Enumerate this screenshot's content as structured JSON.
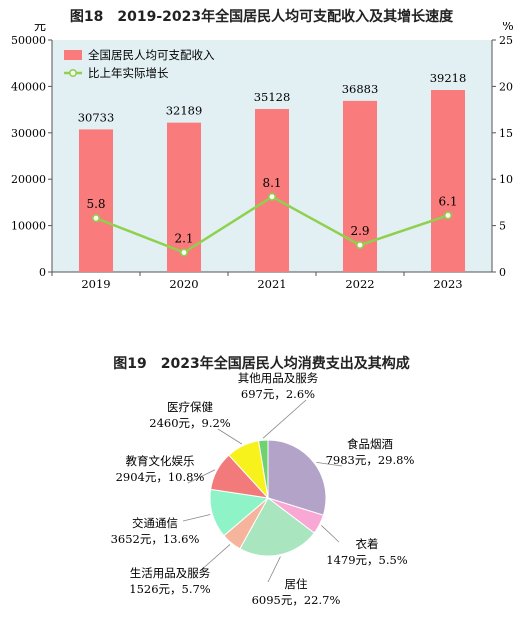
{
  "chart_data": [
    {
      "type": "bar",
      "title": "图18　2019-2023年全国居民人均可支配收入及其增长速度",
      "left_unit": "元",
      "right_unit": "%",
      "categories": [
        "2019",
        "2020",
        "2021",
        "2022",
        "2023"
      ],
      "series": [
        {
          "name": "全国居民人均可支配收入",
          "type": "bar",
          "axis": "left",
          "values": [
            30733,
            32189,
            35128,
            36883,
            39218
          ]
        },
        {
          "name": "比上年实际增长",
          "type": "line",
          "axis": "right",
          "values": [
            5.8,
            2.1,
            8.1,
            2.9,
            6.1
          ],
          "labels": [
            "5.8",
            "2.1",
            "8.1",
            "2.9",
            "6.1"
          ]
        }
      ],
      "ylim_left": [
        0,
        50000
      ],
      "yticks_left": [
        0,
        10000,
        20000,
        30000,
        40000,
        50000
      ],
      "ylim_right": [
        0,
        25
      ],
      "yticks_right": [
        0,
        5,
        10,
        15,
        20,
        25
      ],
      "legend": "top-left",
      "colors": {
        "bar": "#f97b7b",
        "line": "#8fd14f",
        "plot_bg": "#e2f0f4"
      }
    },
    {
      "type": "pie",
      "title": "图19　2023年全国居民人均消费支出及其构成",
      "slices": [
        {
          "name": "食品烟酒",
          "value": 7983,
          "label": "7983元，29.8%",
          "color": "#b4a3c9"
        },
        {
          "name": "衣着",
          "value": 1479,
          "label": "1479元，5.5%",
          "color": "#f9a8d6"
        },
        {
          "name": "居住",
          "value": 6095,
          "label": "6095元，22.7%",
          "color": "#a9e6bf"
        },
        {
          "name": "生活用品及服务",
          "value": 1526,
          "label": "1526元，5.7%",
          "color": "#f6b49c"
        },
        {
          "name": "交通通信",
          "value": 3652,
          "label": "3652元，13.6%",
          "color": "#8ef4c8"
        },
        {
          "name": "教育文化娱乐",
          "value": 2904,
          "label": "2904元，10.8%",
          "color": "#f27a7a"
        },
        {
          "name": "医疗保健",
          "value": 2460,
          "label": "2460元，9.2%",
          "color": "#f7f21c"
        },
        {
          "name": "其他用品及服务",
          "value": 697,
          "label": "697元，2.6%",
          "color": "#6fd26f"
        }
      ]
    }
  ]
}
